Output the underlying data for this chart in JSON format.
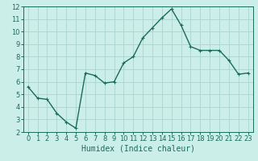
{
  "x": [
    0,
    1,
    2,
    3,
    4,
    5,
    6,
    7,
    8,
    9,
    10,
    11,
    12,
    13,
    14,
    15,
    16,
    17,
    18,
    19,
    20,
    21,
    22,
    23
  ],
  "y": [
    5.6,
    4.7,
    4.6,
    3.5,
    2.8,
    2.3,
    6.7,
    6.5,
    5.9,
    6.0,
    7.5,
    8.0,
    9.5,
    10.3,
    11.1,
    11.8,
    10.5,
    8.8,
    8.5,
    8.5,
    8.5,
    7.7,
    6.6,
    6.7
  ],
  "line_color": "#1a6b5a",
  "marker": "+",
  "marker_size": 3,
  "bg_color": "#cceee8",
  "grid_color": "#aad4ce",
  "xlabel": "Humidex (Indice chaleur)",
  "xlim": [
    -0.5,
    23.5
  ],
  "ylim": [
    2,
    12
  ],
  "yticks": [
    2,
    3,
    4,
    5,
    6,
    7,
    8,
    9,
    10,
    11,
    12
  ],
  "xticks": [
    0,
    1,
    2,
    3,
    4,
    5,
    6,
    7,
    8,
    9,
    10,
    11,
    12,
    13,
    14,
    15,
    16,
    17,
    18,
    19,
    20,
    21,
    22,
    23
  ],
  "tick_color": "#1a6b5a",
  "label_color": "#1a6b5a",
  "linewidth": 1.0,
  "tick_labelsize": 6,
  "xlabel_fontsize": 7
}
